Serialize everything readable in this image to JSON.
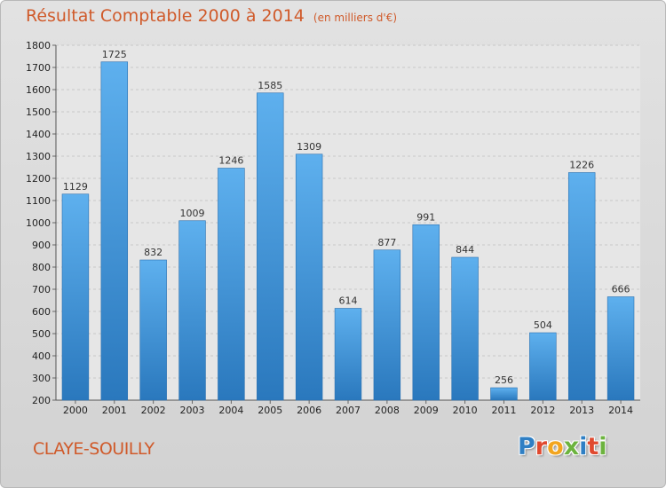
{
  "chart_data": {
    "type": "bar",
    "title": "Résultat Comptable 2000 à 2014",
    "subtitle": "(en milliers d'€)",
    "categories": [
      "2000",
      "2001",
      "2002",
      "2003",
      "2004",
      "2005",
      "2006",
      "2007",
      "2008",
      "2009",
      "2010",
      "2011",
      "2012",
      "2013",
      "2014"
    ],
    "values": [
      1129,
      1725,
      832,
      1009,
      1246,
      1585,
      1309,
      614,
      877,
      991,
      844,
      256,
      504,
      1226,
      666
    ],
    "ylim": [
      200,
      1800
    ],
    "yticks": [
      200,
      300,
      400,
      500,
      600,
      700,
      800,
      900,
      1000,
      1100,
      1200,
      1300,
      1400,
      1500,
      1600,
      1700,
      1800
    ],
    "grid": true,
    "bar_color": "#3d8fd6"
  },
  "footer": {
    "place": "CLAYE-SOUILLY",
    "logo_letters": [
      "P",
      "r",
      "o",
      "x",
      "i",
      "t",
      "i"
    ],
    "logo_colors": [
      "#2f7fc4",
      "#e0492f",
      "#f2a51f",
      "#6cb33e",
      "#2f7fc4",
      "#e0492f",
      "#6cb33e"
    ]
  }
}
